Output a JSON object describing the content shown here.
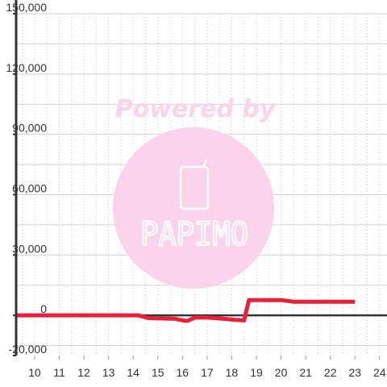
{
  "chart_data": {
    "type": "line",
    "title": "",
    "xlabel": "",
    "ylabel": "",
    "xlim": [
      9.25,
      24.3
    ],
    "ylim": [
      -20000,
      150000
    ],
    "x_ticks": [
      10,
      11,
      12,
      13,
      14,
      15,
      16,
      17,
      18,
      19,
      20,
      21,
      22,
      23,
      24
    ],
    "y_ticks": [
      {
        "value": -20000,
        "label": "-20,000"
      },
      {
        "value": 0,
        "label": "0"
      },
      {
        "value": 30000,
        "label": "30,000"
      },
      {
        "value": 60000,
        "label": "60,000"
      },
      {
        "value": 90000,
        "label": "90,000"
      },
      {
        "value": 120000,
        "label": "120,000"
      },
      {
        "value": 150000,
        "label": "150,000"
      }
    ],
    "grid": true,
    "series": [
      {
        "color": "#e8213a",
        "x": [
          9.25,
          14.2,
          14.6,
          15.1,
          15.7,
          16.1,
          16.2,
          16.5,
          17.0,
          17.5,
          18.1,
          18.5,
          18.7,
          19.0,
          20.0,
          20.5,
          21.0,
          22.0,
          23.0
        ],
        "y": [
          0,
          0,
          -1300,
          -1500,
          -1700,
          -2700,
          -2700,
          -1100,
          -1100,
          -1500,
          -2200,
          -2500,
          7600,
          7600,
          7600,
          6800,
          6800,
          6800,
          6800
        ]
      }
    ]
  },
  "watermark": {
    "powered_by": "Powered by",
    "brand": "PAPIMO",
    "color": "#fbd3ea",
    "icon": "phone-icon"
  }
}
